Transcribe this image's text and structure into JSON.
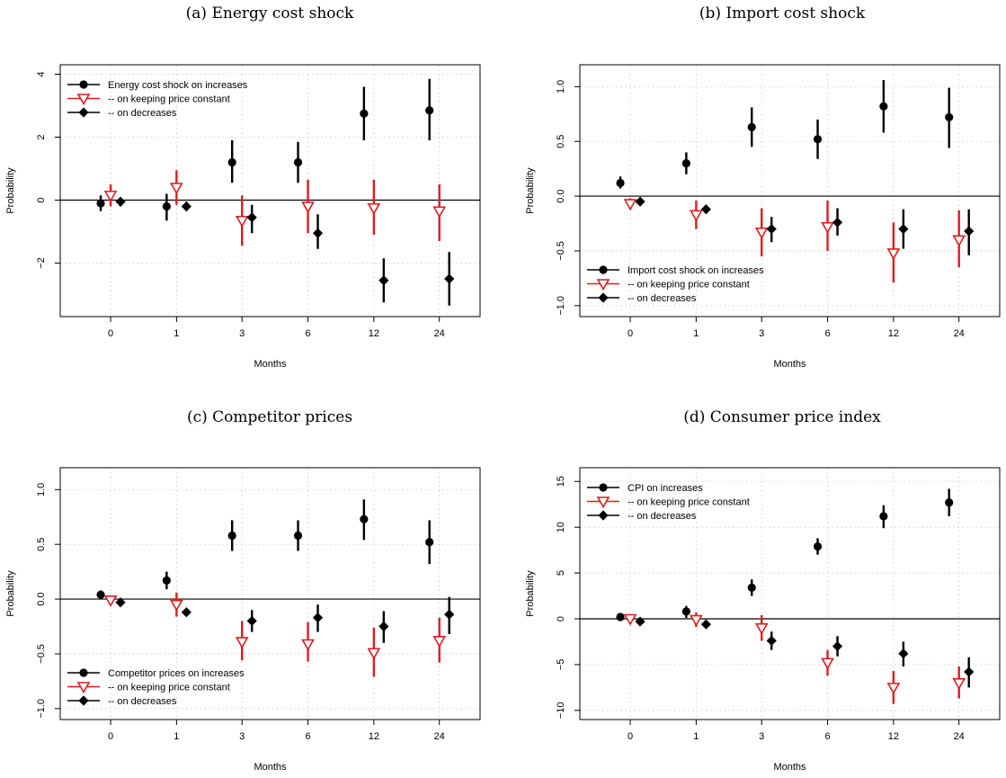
{
  "colors": {
    "increases": "#000000",
    "constant": "#e41a1c",
    "decreases": "#000000",
    "grid": "#d3d3d3"
  },
  "chart_data": [
    {
      "type": "scatter",
      "panel": "a",
      "title": "(a) Energy cost shock",
      "xlabel": "Months",
      "ylabel": "Probability",
      "categories": [
        "0",
        "1",
        "3",
        "6",
        "12",
        "24"
      ],
      "yticks": [
        -2,
        0,
        2,
        4
      ],
      "ytick_labels": [
        "−2",
        "0",
        "2",
        "4"
      ],
      "ylim": [
        -3.7,
        4.3
      ],
      "legend_position": "top-left",
      "series": [
        {
          "name": "Energy cost shock on increases",
          "marker": "circle",
          "color": "#000000",
          "values": [
            -0.1,
            -0.2,
            1.2,
            1.2,
            2.75,
            2.85
          ],
          "lower": [
            -0.35,
            -0.65,
            0.55,
            0.55,
            1.9,
            1.9
          ],
          "upper": [
            0.15,
            0.2,
            1.9,
            1.85,
            3.6,
            3.85
          ]
        },
        {
          "name": "-- on keeping price constant",
          "marker": "triangle-down-open",
          "color": "#e41a1c",
          "values": [
            0.15,
            0.4,
            -0.65,
            -0.2,
            -0.25,
            -0.35
          ],
          "lower": [
            -0.2,
            -0.15,
            -1.45,
            -1.05,
            -1.1,
            -1.3
          ],
          "upper": [
            0.5,
            0.95,
            0.15,
            0.65,
            0.65,
            0.5
          ]
        },
        {
          "name": "-- on decreases",
          "marker": "diamond",
          "color": "#000000",
          "values": [
            -0.05,
            -0.2,
            -0.55,
            -1.05,
            -2.55,
            -2.5
          ],
          "lower": [
            -0.2,
            -0.35,
            -1.05,
            -1.55,
            -3.25,
            -3.35
          ],
          "upper": [
            0.05,
            -0.05,
            -0.15,
            -0.45,
            -1.85,
            -1.65
          ]
        }
      ]
    },
    {
      "type": "scatter",
      "panel": "b",
      "title": "(b) Import cost shock",
      "xlabel": "Months",
      "ylabel": "Probability",
      "categories": [
        "0",
        "1",
        "3",
        "6",
        "12",
        "24"
      ],
      "yticks": [
        -1.0,
        -0.5,
        0.0,
        0.5,
        1.0
      ],
      "ytick_labels": [
        "−1.0",
        "−0.5",
        "0.0",
        "0.5",
        "1.0"
      ],
      "ylim": [
        -1.1,
        1.2
      ],
      "legend_position": "bottom-left",
      "series": [
        {
          "name": "Import cost shock on increases",
          "marker": "circle",
          "color": "#000000",
          "values": [
            0.12,
            0.3,
            0.63,
            0.52,
            0.82,
            0.72
          ],
          "lower": [
            0.07,
            0.2,
            0.45,
            0.34,
            0.58,
            0.44
          ],
          "upper": [
            0.18,
            0.4,
            0.81,
            0.7,
            1.06,
            0.99
          ]
        },
        {
          "name": "-- on keeping price constant",
          "marker": "triangle-down-open",
          "color": "#e41a1c",
          "values": [
            -0.07,
            -0.17,
            -0.33,
            -0.28,
            -0.52,
            -0.4
          ],
          "lower": [
            -0.12,
            -0.3,
            -0.55,
            -0.5,
            -0.79,
            -0.65
          ],
          "upper": [
            -0.02,
            -0.04,
            -0.11,
            -0.04,
            -0.24,
            -0.13
          ]
        },
        {
          "name": "-- on decreases",
          "marker": "diamond",
          "color": "#000000",
          "values": [
            -0.05,
            -0.12,
            -0.3,
            -0.24,
            -0.3,
            -0.32
          ],
          "lower": [
            -0.08,
            -0.16,
            -0.42,
            -0.36,
            -0.48,
            -0.54
          ],
          "upper": [
            -0.02,
            -0.08,
            -0.19,
            -0.11,
            -0.12,
            -0.12
          ]
        }
      ]
    },
    {
      "type": "scatter",
      "panel": "c",
      "title": "(c) Competitor prices",
      "xlabel": "Months",
      "ylabel": "Probability",
      "categories": [
        "0",
        "1",
        "3",
        "6",
        "12",
        "24"
      ],
      "yticks": [
        -1.0,
        -0.5,
        0.0,
        0.5,
        1.0
      ],
      "ytick_labels": [
        "−1.0",
        "−0.5",
        "0.0",
        "0.5",
        "1.0"
      ],
      "ylim": [
        -1.1,
        1.2
      ],
      "legend_position": "bottom-left",
      "series": [
        {
          "name": "Competitor prices on increases",
          "marker": "circle",
          "color": "#000000",
          "values": [
            0.04,
            0.17,
            0.58,
            0.58,
            0.73,
            0.52
          ],
          "lower": [
            0.01,
            0.09,
            0.44,
            0.44,
            0.54,
            0.32
          ],
          "upper": [
            0.08,
            0.25,
            0.72,
            0.72,
            0.91,
            0.72
          ]
        },
        {
          "name": "-- on keeping price constant",
          "marker": "triangle-down-open",
          "color": "#e41a1c",
          "values": [
            -0.01,
            -0.05,
            -0.39,
            -0.41,
            -0.49,
            -0.38
          ],
          "lower": [
            -0.03,
            -0.16,
            -0.56,
            -0.57,
            -0.71,
            -0.58
          ],
          "upper": [
            0.02,
            0.06,
            -0.2,
            -0.21,
            -0.26,
            -0.17
          ]
        },
        {
          "name": "-- on decreases",
          "marker": "diamond",
          "color": "#000000",
          "values": [
            -0.03,
            -0.12,
            -0.2,
            -0.17,
            -0.25,
            -0.14
          ],
          "lower": [
            -0.05,
            -0.15,
            -0.3,
            -0.3,
            -0.4,
            -0.32
          ],
          "upper": [
            -0.01,
            -0.09,
            -0.1,
            -0.05,
            -0.11,
            0.02
          ]
        }
      ]
    },
    {
      "type": "scatter",
      "panel": "d",
      "title": "(d) Consumer price index",
      "xlabel": "Months",
      "ylabel": "Probability",
      "categories": [
        "0",
        "1",
        "3",
        "6",
        "12",
        "24"
      ],
      "yticks": [
        -10,
        -5,
        0,
        5,
        10,
        15
      ],
      "ytick_labels": [
        "−10",
        "−5",
        "0",
        "5",
        "10",
        "15"
      ],
      "ylim": [
        -11,
        16.5
      ],
      "legend_position": "top-left",
      "series": [
        {
          "name": "CPI on increases",
          "marker": "circle",
          "color": "#000000",
          "values": [
            0.2,
            0.8,
            3.4,
            7.9,
            11.2,
            12.7
          ],
          "lower": [
            0.05,
            0.1,
            2.5,
            7.0,
            9.9,
            11.2
          ],
          "upper": [
            0.35,
            1.4,
            4.3,
            8.8,
            12.4,
            14.2
          ]
        },
        {
          "name": "-- on keeping price constant",
          "marker": "triangle-down-open",
          "color": "#e41a1c",
          "values": [
            0.0,
            -0.1,
            -1.0,
            -4.8,
            -7.5,
            -7.0
          ],
          "lower": [
            -0.2,
            -0.9,
            -2.4,
            -6.2,
            -9.3,
            -8.7
          ],
          "upper": [
            0.2,
            0.7,
            0.4,
            -3.4,
            -5.7,
            -5.2
          ]
        },
        {
          "name": "-- on decreases",
          "marker": "diamond",
          "color": "#000000",
          "values": [
            -0.3,
            -0.6,
            -2.4,
            -3.0,
            -3.8,
            -5.8
          ],
          "lower": [
            -0.5,
            -0.9,
            -3.4,
            -4.1,
            -5.2,
            -7.5
          ],
          "upper": [
            -0.1,
            -0.3,
            -1.4,
            -1.9,
            -2.5,
            -4.2
          ]
        }
      ]
    }
  ]
}
